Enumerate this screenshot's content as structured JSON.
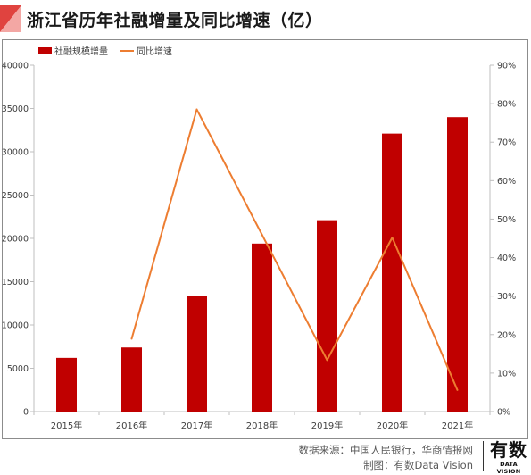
{
  "header": {
    "title": "浙江省历年社融增量及同比增速（亿）",
    "accent_color": "#e0433f"
  },
  "chart_data": {
    "type": "bar",
    "title": "浙江省历年社融增量及同比增速（亿）",
    "categories": [
      "2015年",
      "2016年",
      "2017年",
      "2018年",
      "2019年",
      "2020年",
      "2021年"
    ],
    "series": [
      {
        "name": "社融规模增量",
        "type": "bar",
        "axis": "left",
        "color": "#c00000",
        "values": [
          6200,
          7400,
          13300,
          19400,
          22100,
          32100,
          34000
        ]
      },
      {
        "name": "同比增速",
        "type": "line",
        "axis": "right",
        "color": "#ed7d31",
        "values": [
          null,
          18.9,
          78.5,
          46.0,
          13.4,
          45.2,
          5.6
        ]
      }
    ],
    "y_left": {
      "min": 0,
      "max": 40000,
      "ticks": [
        "0",
        "5000",
        "10000",
        "15000",
        "20000",
        "25000",
        "30000",
        "35000",
        "40000"
      ]
    },
    "y_right": {
      "min": 0,
      "max": 90,
      "ticks": [
        "0%",
        "10%",
        "20%",
        "30%",
        "40%",
        "50%",
        "60%",
        "70%",
        "80%",
        "90%"
      ]
    },
    "grid": false,
    "legend": "top-left"
  },
  "footer": {
    "source": "数据来源：中国人民银行，华商情报网",
    "maker": "制图：有数Data Vision",
    "brand_cn": "有数",
    "brand_en": "DATA VISION"
  }
}
